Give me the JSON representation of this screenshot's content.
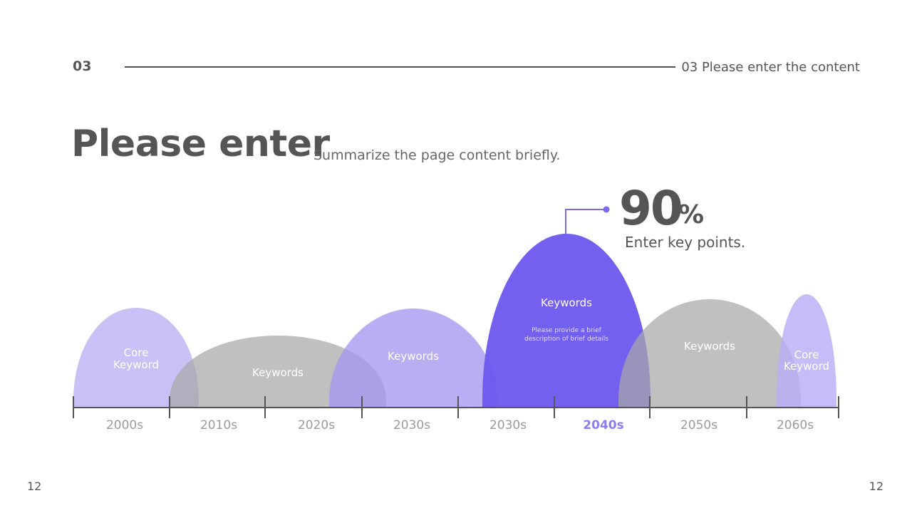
{
  "header": {
    "section_number": "03",
    "section_title": "03 Please enter the content"
  },
  "main": {
    "title": "Please enter",
    "subtitle": "Summarize the page content briefly."
  },
  "highlight": {
    "value": "90",
    "unit": "%",
    "caption": "Enter key points."
  },
  "hills": [
    {
      "label_lines": [
        "Core",
        "Keyword"
      ],
      "height_level": 0.61,
      "color": "#c9c1f5"
    },
    {
      "label_lines": [
        "Keywords"
      ],
      "height_level": 0.49,
      "color": "#b0b0b0"
    },
    {
      "label_lines": [
        "Keywords"
      ],
      "height_level": 0.6,
      "color": "#b6aaf3"
    },
    {
      "label_lines": [
        "Keywords"
      ],
      "height_level": 1.0,
      "color": "#6b57ee",
      "description": [
        "Please provide a brief",
        "description of brief details"
      ]
    },
    {
      "label_lines": [
        "Keywords"
      ],
      "height_level": 0.65,
      "color": "#b0b0b0"
    },
    {
      "label_lines": [
        "Core",
        "Keyword"
      ],
      "height_level": 0.65,
      "color": "#c9c1f5"
    }
  ],
  "timeline": {
    "labels": [
      "2000s",
      "2010s",
      "2020s",
      "2030s",
      "2030s",
      "2040s",
      "2050s",
      "2060s"
    ],
    "active_index": 5,
    "active_color": "#8b7cf0"
  },
  "footer": {
    "page_left": "12",
    "page_right": "12"
  }
}
